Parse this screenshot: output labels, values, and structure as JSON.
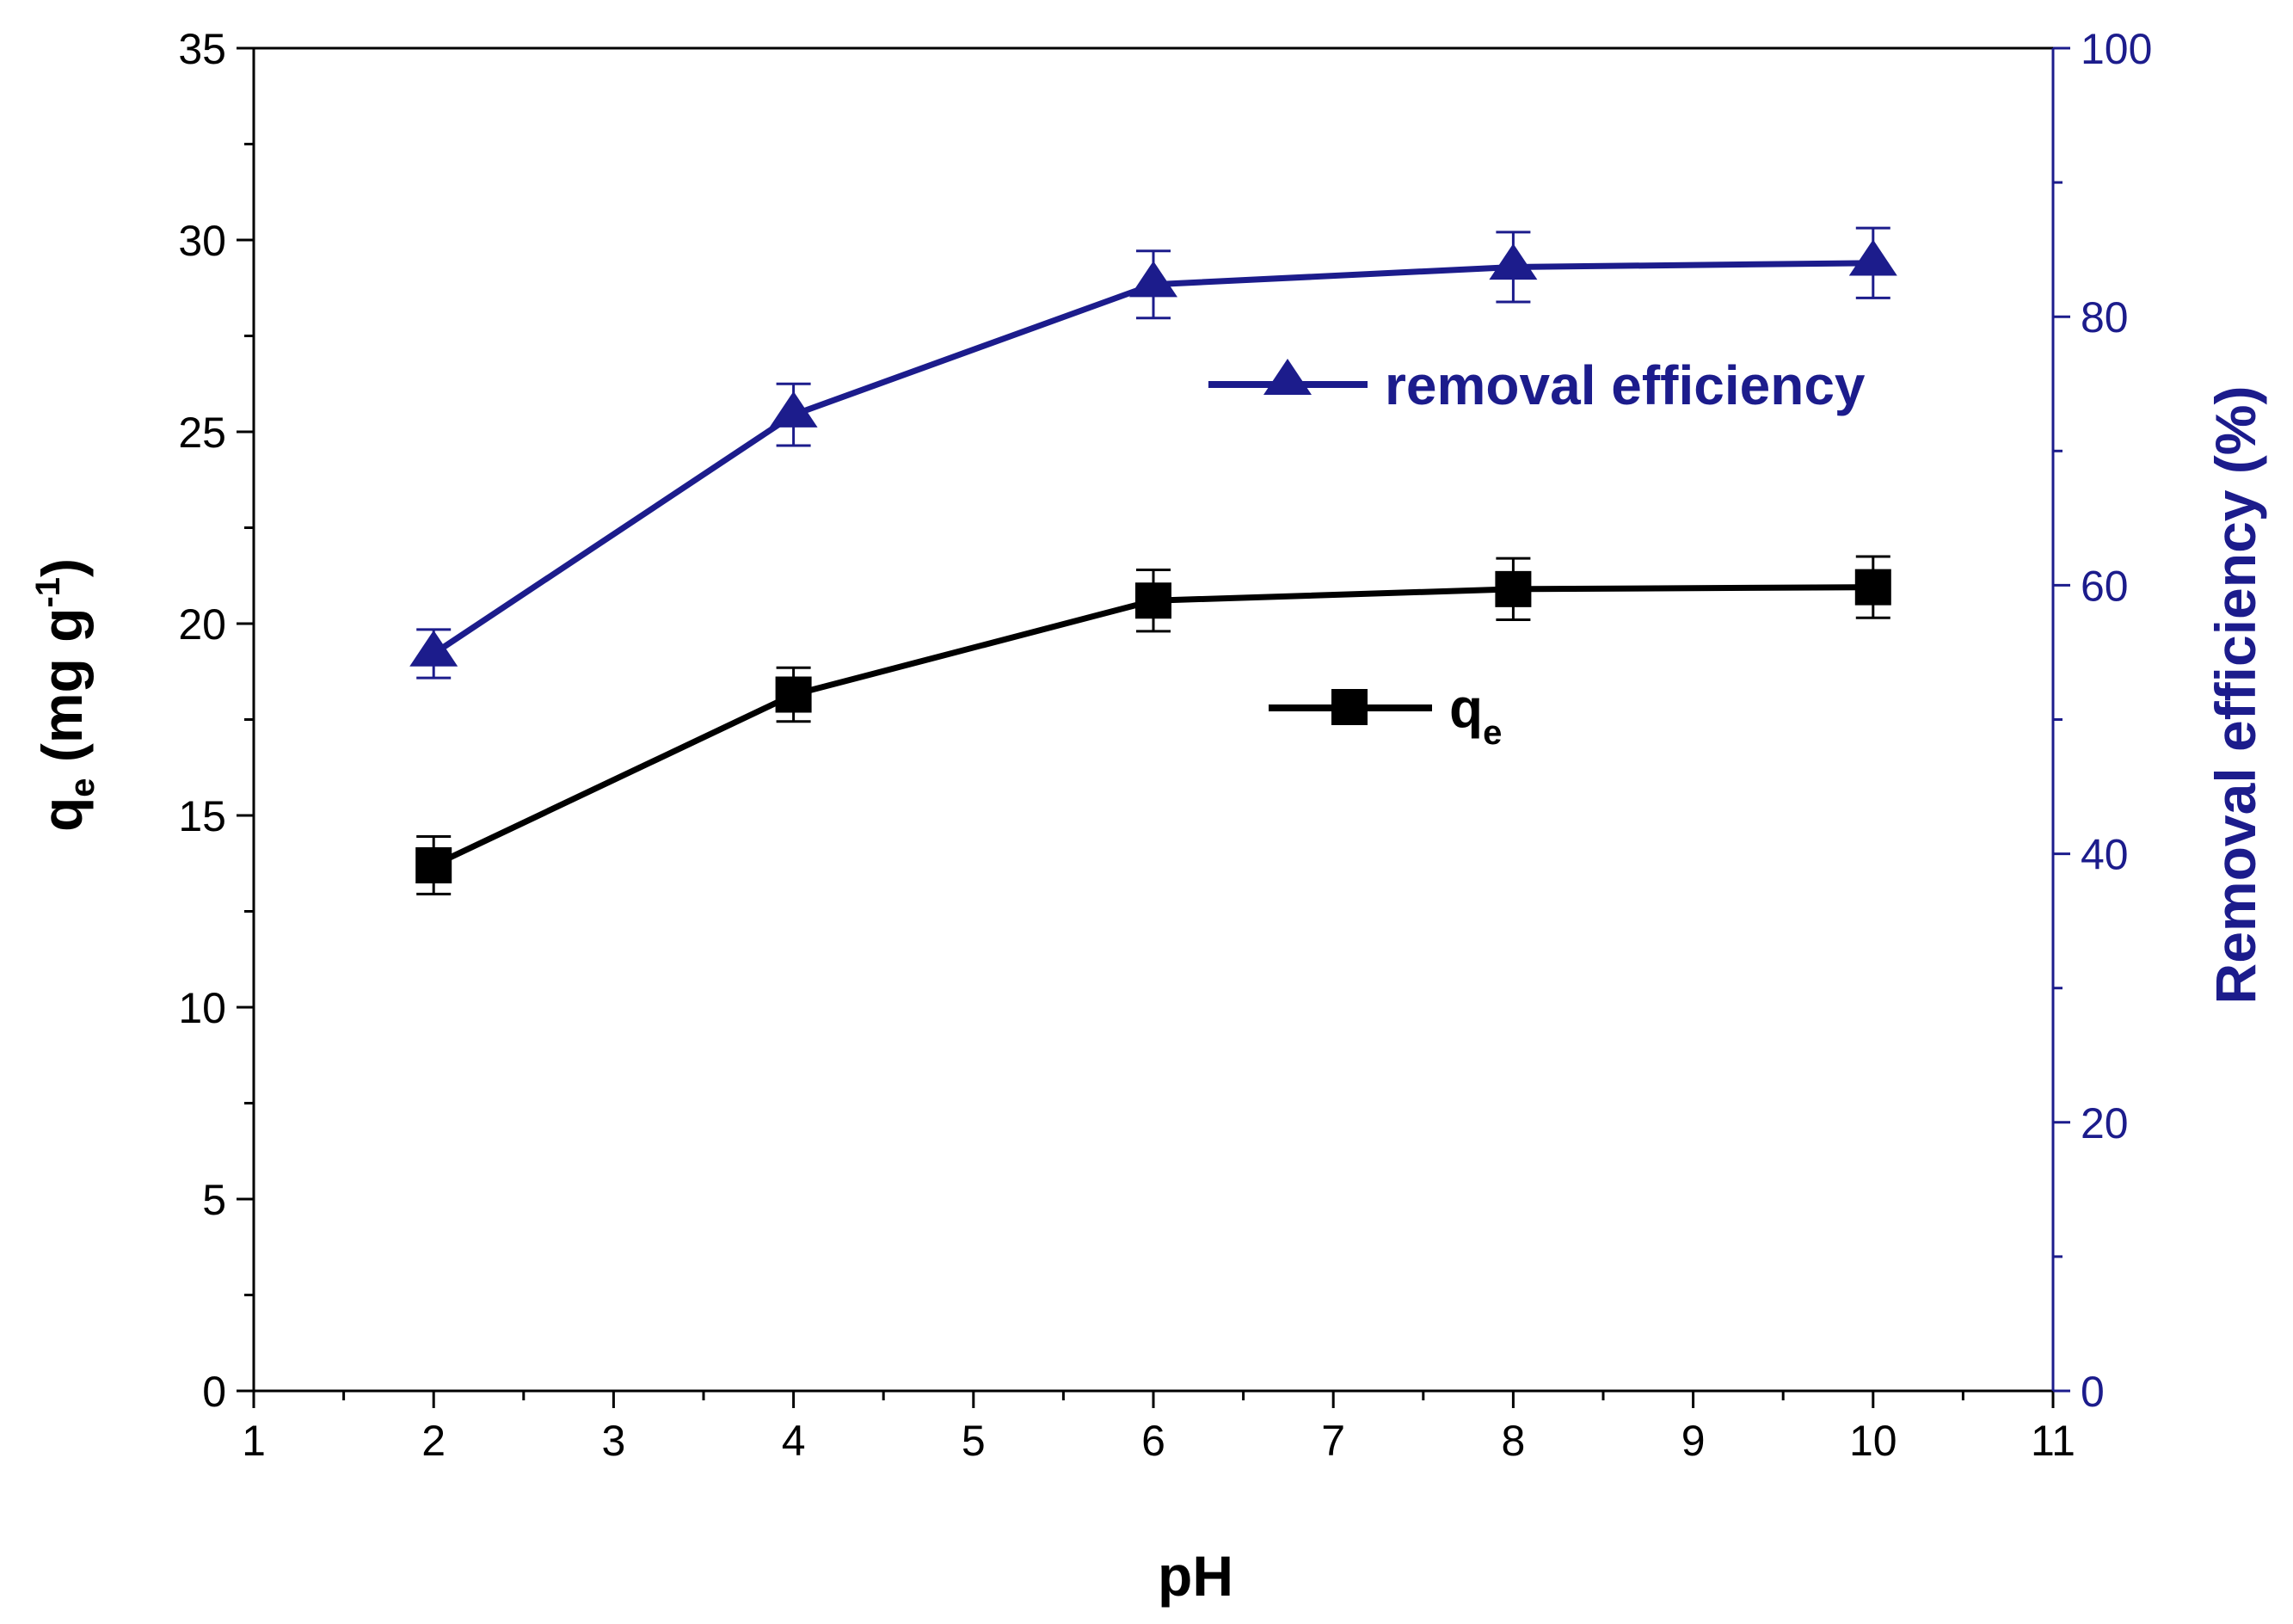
{
  "chart_data": {
    "type": "line",
    "x_axis": {
      "label": "pH",
      "lim": [
        1,
        11
      ],
      "ticks": [
        1,
        2,
        3,
        4,
        5,
        6,
        7,
        8,
        9,
        10,
        11
      ]
    },
    "y_axis_left": {
      "label_main": "q",
      "label_sub": "e",
      "label_rest": " (mg g",
      "label_sup": "-1",
      "label_close": ")",
      "lim": [
        0,
        35
      ],
      "ticks": [
        0,
        5,
        10,
        15,
        20,
        25,
        30,
        35
      ]
    },
    "y_axis_right": {
      "label": "Removal efficiency (%)",
      "lim": [
        0,
        100
      ],
      "ticks": [
        0,
        20,
        40,
        60,
        80,
        100
      ]
    },
    "series": [
      {
        "name": "q",
        "name_sub": "e",
        "axis": "left",
        "marker": "square",
        "color": "#000000",
        "x": [
          2,
          4,
          6,
          8,
          10
        ],
        "y": [
          13.7,
          18.15,
          20.6,
          20.9,
          20.95
        ],
        "err": [
          0.75,
          0.7,
          0.8,
          0.8,
          0.8
        ],
        "legend_position": "center"
      },
      {
        "name": "removal efficiency",
        "axis": "right",
        "marker": "triangle",
        "color": "#1c1c8c",
        "x": [
          2,
          4,
          6,
          8,
          10
        ],
        "y": [
          54.9,
          72.7,
          82.4,
          83.7,
          84.0
        ],
        "err": [
          1.8,
          2.3,
          2.5,
          2.6,
          2.6
        ],
        "legend_position": "upper-right"
      }
    ]
  }
}
